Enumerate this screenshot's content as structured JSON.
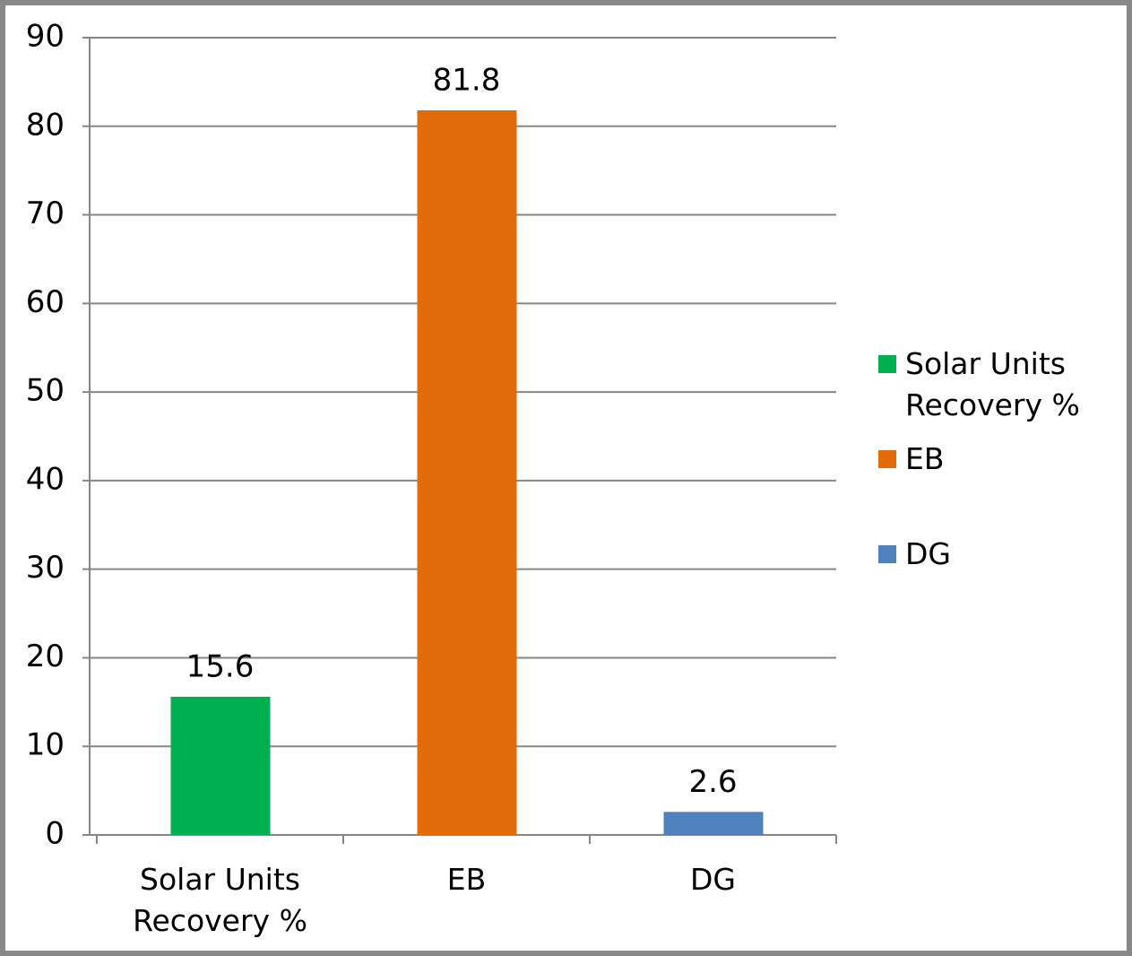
{
  "chart_data": {
    "type": "bar",
    "categories": [
      "Solar Units Recovery %",
      "EB",
      "DG"
    ],
    "values": [
      15.6,
      81.8,
      2.6
    ],
    "colors": [
      "#00b050",
      "#e36c0a",
      "#4f81bd"
    ],
    "ylim": [
      0,
      90
    ],
    "yticks": [
      0,
      10,
      20,
      30,
      40,
      50,
      60,
      70,
      80,
      90
    ],
    "grid": true,
    "legend": "right"
  }
}
